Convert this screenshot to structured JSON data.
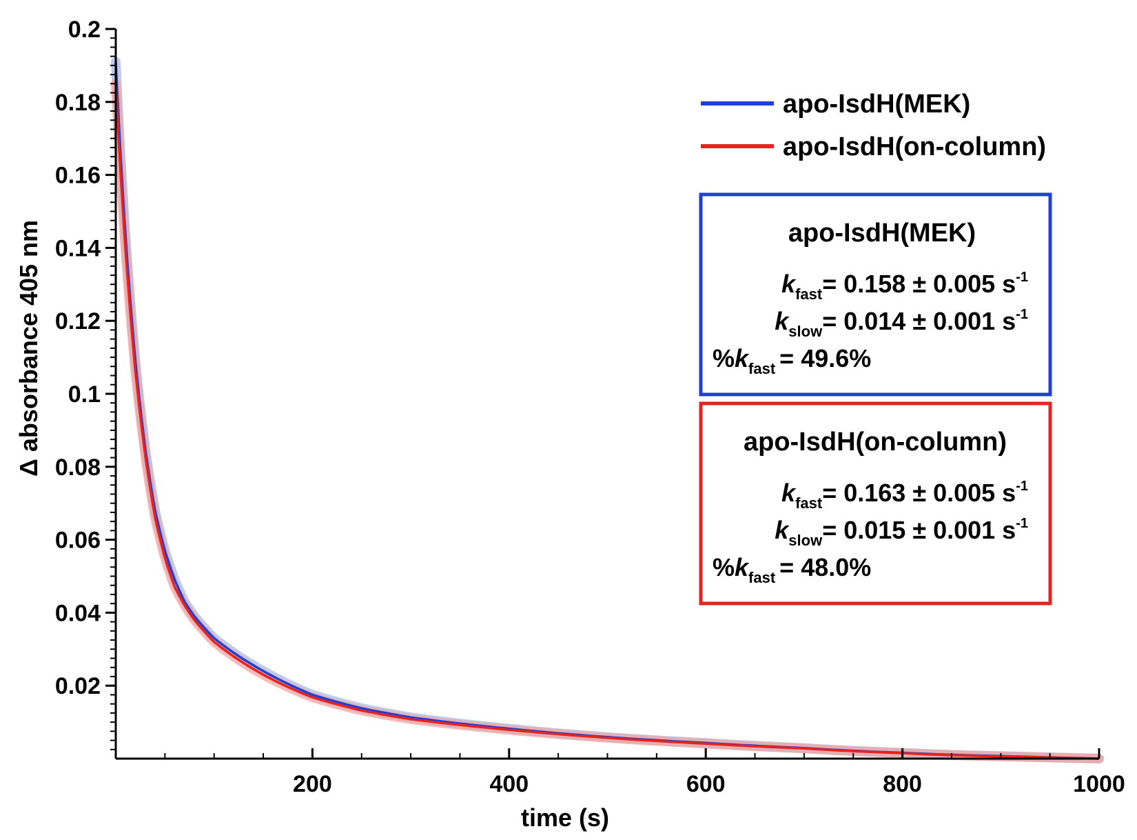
{
  "chart_data": {
    "type": "line",
    "xlabel": "time (s)",
    "ylabel": "Δ absorbance 405 nm",
    "xlim": [
      0,
      1000
    ],
    "ylim": [
      0,
      0.2
    ],
    "x_ticks": [
      200,
      400,
      600,
      800,
      1000
    ],
    "x_tick_labels": [
      "200",
      "400",
      "600",
      "800",
      "1000"
    ],
    "y_ticks": [
      0.02,
      0.04,
      0.06,
      0.08,
      0.1,
      0.12,
      0.14,
      0.16,
      0.18,
      0.2
    ],
    "y_tick_labels": [
      "0.02",
      "0.04",
      "0.06",
      "0.08",
      "0.1",
      "0.12",
      "0.14",
      "0.16",
      "0.18",
      "0.2"
    ],
    "grid": false,
    "legend_position": "top-right",
    "series": [
      {
        "name": "apo-IsdH(MEK)",
        "color": "#1f3fd6",
        "band_color": "#aab8e6",
        "x": [
          0,
          5,
          10,
          20,
          30,
          40,
          50,
          60,
          70,
          80,
          100,
          120,
          150,
          200,
          250,
          300,
          400,
          500,
          600,
          700,
          800,
          900,
          1000
        ],
        "y": [
          0.191,
          0.165,
          0.143,
          0.109,
          0.085,
          0.068,
          0.057,
          0.049,
          0.043,
          0.039,
          0.033,
          0.029,
          0.024,
          0.0175,
          0.0138,
          0.0113,
          0.0082,
          0.0059,
          0.0043,
          0.0029,
          0.0016,
          0.0007,
          0.0
        ]
      },
      {
        "name": "apo-IsdH(on-column)",
        "color": "#e8231e",
        "band_color": "#f0a5a0",
        "x": [
          0,
          5,
          10,
          20,
          30,
          40,
          50,
          60,
          70,
          80,
          100,
          120,
          150,
          200,
          250,
          300,
          400,
          500,
          600,
          700,
          800,
          900,
          1000
        ],
        "y": [
          0.185,
          0.16,
          0.139,
          0.106,
          0.083,
          0.066,
          0.055,
          0.047,
          0.042,
          0.038,
          0.032,
          0.028,
          0.023,
          0.0168,
          0.0132,
          0.0108,
          0.0079,
          0.0057,
          0.0041,
          0.0028,
          0.0015,
          0.0006,
          0.0
        ]
      }
    ],
    "annotations": [
      {
        "title": "apo-IsdH(MEK)",
        "border_color": "#1f3fd6",
        "kfast_k": "k",
        "kfast_sub": "fast",
        "kfast_val": "= 0.158 ± 0.005 s",
        "kfast_sup": "-1",
        "kslow_k": "k",
        "kslow_sub": "slow",
        "kslow_val": "= 0.014 ± 0.001 s",
        "kslow_sup": "-1",
        "pct_prefix": "%",
        "pct_k": "k",
        "pct_sub": "fast",
        "pct_val": "= 49.6%"
      },
      {
        "title": "apo-IsdH(on-column)",
        "border_color": "#e8231e",
        "kfast_k": "k",
        "kfast_sub": "fast",
        "kfast_val": "= 0.163 ± 0.005 s",
        "kfast_sup": "-1",
        "kslow_k": "k",
        "kslow_sub": "slow",
        "kslow_val": "= 0.015 ± 0.001 s",
        "kslow_sup": "-1",
        "pct_prefix": "%",
        "pct_k": "k",
        "pct_sub": "fast",
        "pct_val": "= 48.0%"
      }
    ]
  }
}
